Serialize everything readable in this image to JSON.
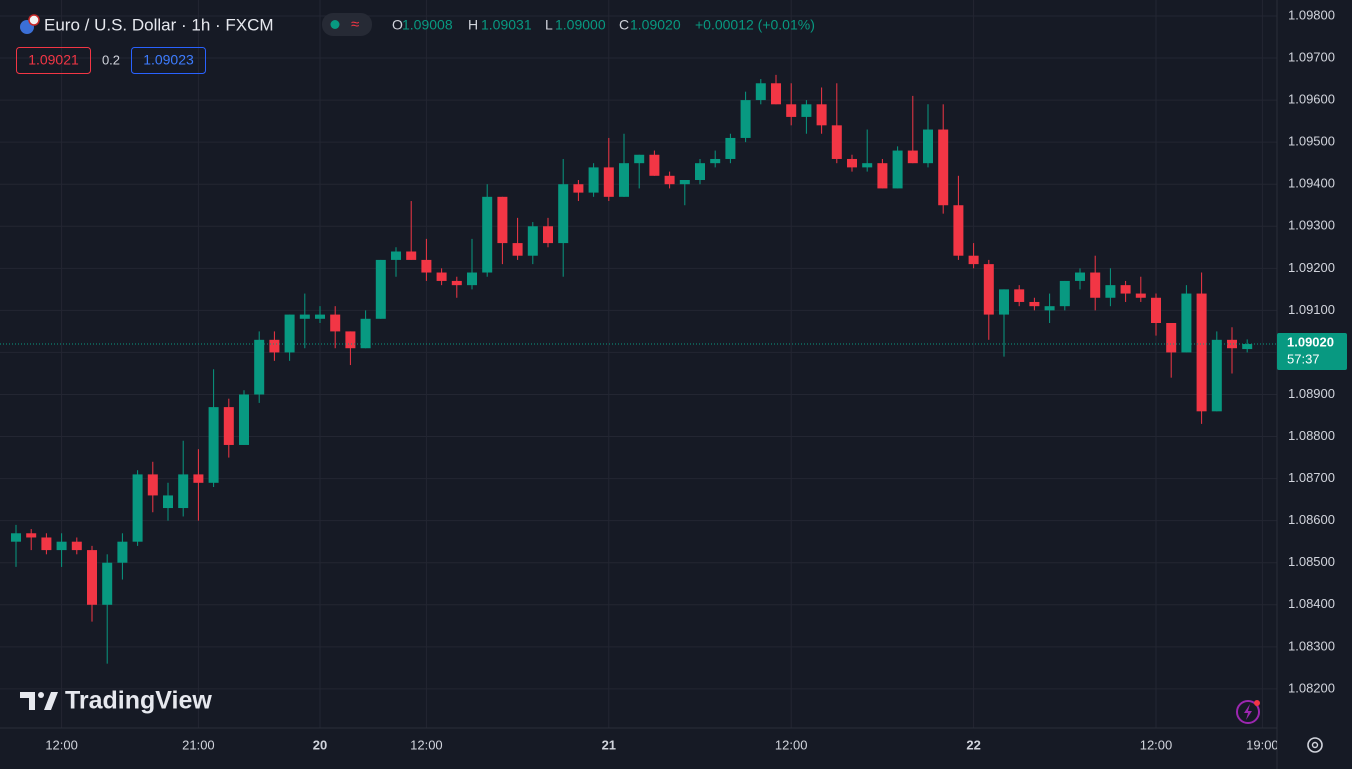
{
  "chart_data": {
    "type": "candlestick",
    "title": "Euro / U.S. Dollar · 1h · FXCM",
    "legend": {
      "o_label": "O",
      "open": "1.09008",
      "h_label": "H",
      "high": "1.09031",
      "l_label": "L",
      "low": "1.09000",
      "c_label": "C",
      "close": "1.09020",
      "change": "+0.00012 (+0.01%)"
    },
    "quote": {
      "sell": "1.09021",
      "spread": "0.2",
      "buy": "1.09023"
    },
    "price_label": {
      "price": "1.09020",
      "countdown": "57:37"
    },
    "brand": "TradingView",
    "up_color": "#089981",
    "down_color": "#f23645",
    "open": [
      1.0855,
      1.0857,
      1.0856,
      1.0853,
      1.0855,
      1.0853,
      1.084,
      1.085,
      1.0855,
      1.0871,
      1.0863,
      1.0863,
      1.0871,
      1.0869,
      1.0887,
      1.0878,
      1.089,
      1.0903,
      1.09,
      1.0908,
      1.0908,
      1.0909,
      1.0905,
      1.0901,
      1.0908,
      1.0922,
      1.0924,
      1.0922,
      1.0919,
      1.0917,
      1.0916,
      1.0919,
      1.0937,
      1.0926,
      1.0923,
      1.093,
      1.0926,
      1.094,
      1.0938,
      1.0944,
      1.0937,
      1.0945,
      1.0947,
      1.0942,
      1.094,
      1.0941,
      1.0945,
      1.0946,
      1.0951,
      1.096,
      1.0964,
      1.0959,
      1.0956,
      1.0959,
      1.0954,
      1.0946,
      1.0944,
      1.0945,
      1.0939,
      1.0948,
      1.0945,
      1.0953,
      1.0935,
      1.0923,
      1.0921,
      1.0909,
      1.0915,
      1.0912,
      1.091,
      1.0911,
      1.0917,
      1.0919,
      1.0913,
      1.0916,
      1.0914,
      1.0913,
      1.0907,
      1.09,
      1.0914,
      1.0886,
      1.0903,
      1.09008
    ],
    "high": [
      1.0859,
      1.0858,
      1.0857,
      1.0857,
      1.0856,
      1.0854,
      1.0852,
      1.0857,
      1.0872,
      1.0874,
      1.0869,
      1.0879,
      1.0877,
      1.0896,
      1.0889,
      1.0891,
      1.0905,
      1.0905,
      1.0909,
      1.0914,
      1.0911,
      1.0911,
      1.0905,
      1.091,
      1.0922,
      1.0925,
      1.0936,
      1.0927,
      1.092,
      1.0918,
      1.0927,
      1.094,
      1.0937,
      1.0932,
      1.0931,
      1.0932,
      1.0946,
      1.0941,
      1.0945,
      1.0951,
      1.0952,
      1.0947,
      1.0948,
      1.0943,
      1.0941,
      1.0946,
      1.0948,
      1.0952,
      1.0962,
      1.0965,
      1.0966,
      1.0964,
      1.096,
      1.0963,
      1.0964,
      1.0947,
      1.0953,
      1.0946,
      1.0949,
      1.0961,
      1.0959,
      1.0959,
      1.0942,
      1.0926,
      1.0922,
      1.0915,
      1.0916,
      1.0913,
      1.0914,
      1.0917,
      1.092,
      1.0923,
      1.092,
      1.0917,
      1.0918,
      1.0914,
      1.0907,
      1.0916,
      1.0919,
      1.0905,
      1.0906,
      1.09031
    ],
    "low": [
      1.0849,
      1.0853,
      1.0852,
      1.0849,
      1.0852,
      1.0836,
      1.0826,
      1.0846,
      1.0854,
      1.0862,
      1.086,
      1.0861,
      1.086,
      1.0868,
      1.0875,
      1.0878,
      1.0888,
      1.0898,
      1.0898,
      1.0901,
      1.0907,
      1.0901,
      1.0897,
      1.0901,
      1.0908,
      1.0918,
      1.0922,
      1.0917,
      1.0916,
      1.0913,
      1.0915,
      1.0918,
      1.0921,
      1.0922,
      1.0921,
      1.0925,
      1.0918,
      1.0936,
      1.0937,
      1.0936,
      1.0937,
      1.0939,
      1.0942,
      1.0939,
      1.0935,
      1.094,
      1.0944,
      1.0945,
      1.095,
      1.0959,
      1.0959,
      1.0954,
      1.0952,
      1.0952,
      1.0945,
      1.0943,
      1.0943,
      1.0939,
      1.0939,
      1.0945,
      1.0944,
      1.0933,
      1.0922,
      1.092,
      1.0903,
      1.0899,
      1.0911,
      1.091,
      1.0907,
      1.091,
      1.0915,
      1.091,
      1.0911,
      1.0912,
      1.0912,
      1.0904,
      1.0894,
      1.09,
      1.0883,
      1.0886,
      1.0895,
      1.09
    ],
    "close": [
      1.0857,
      1.0856,
      1.0853,
      1.0855,
      1.0853,
      1.084,
      1.085,
      1.0855,
      1.0871,
      1.0866,
      1.0866,
      1.0871,
      1.0869,
      1.0887,
      1.0878,
      1.089,
      1.0903,
      1.09,
      1.0909,
      1.0909,
      1.0909,
      1.0905,
      1.0901,
      1.0908,
      1.0922,
      1.0924,
      1.0922,
      1.0919,
      1.0917,
      1.0916,
      1.0919,
      1.0937,
      1.0926,
      1.0923,
      1.093,
      1.0926,
      1.094,
      1.0938,
      1.0944,
      1.0937,
      1.0945,
      1.0947,
      1.0942,
      1.094,
      1.0941,
      1.0945,
      1.0946,
      1.0951,
      1.096,
      1.0964,
      1.0959,
      1.0956,
      1.0959,
      1.0954,
      1.0946,
      1.0944,
      1.0945,
      1.0939,
      1.0948,
      1.0945,
      1.0953,
      1.0935,
      1.0923,
      1.0921,
      1.0909,
      1.0915,
      1.0912,
      1.0911,
      1.0911,
      1.0917,
      1.0919,
      1.0913,
      1.0916,
      1.0914,
      1.0913,
      1.0907,
      1.09,
      1.0914,
      1.0886,
      1.0903,
      1.0901,
      1.0902
    ],
    "xticks": [
      {
        "value": 3,
        "label": "12:00"
      },
      {
        "value": 12,
        "label": "21:00"
      },
      {
        "value": 20,
        "label": "20"
      },
      {
        "value": 27,
        "label": "12:00"
      },
      {
        "value": 39,
        "label": "21"
      },
      {
        "value": 51,
        "label": "12:00"
      },
      {
        "value": 63,
        "label": "22"
      },
      {
        "value": 75,
        "label": "12:00"
      },
      {
        "value": 82,
        "label": "19:00"
      }
    ],
    "ylim": [
      1.08107,
      1.09838
    ],
    "yticks": [
      {
        "value": 1.098,
        "label": "1.09800"
      },
      {
        "value": 1.097,
        "label": "1.09700"
      },
      {
        "value": 1.096,
        "label": "1.09600"
      },
      {
        "value": 1.095,
        "label": "1.09500"
      },
      {
        "value": 1.094,
        "label": "1.09400"
      },
      {
        "value": 1.093,
        "label": "1.09300"
      },
      {
        "value": 1.092,
        "label": "1.09200"
      },
      {
        "value": 1.091,
        "label": "1.09100"
      },
      {
        "value": 1.09,
        "label": "1.09000"
      },
      {
        "value": 1.089,
        "label": "1.08900"
      },
      {
        "value": 1.088,
        "label": "1.08800"
      },
      {
        "value": 1.087,
        "label": "1.08700"
      },
      {
        "value": 1.086,
        "label": "1.08600"
      },
      {
        "value": 1.085,
        "label": "1.08500"
      },
      {
        "value": 1.084,
        "label": "1.08400"
      },
      {
        "value": 1.083,
        "label": "1.08300"
      },
      {
        "value": 1.082,
        "label": "1.08200"
      }
    ],
    "grid": true
  }
}
